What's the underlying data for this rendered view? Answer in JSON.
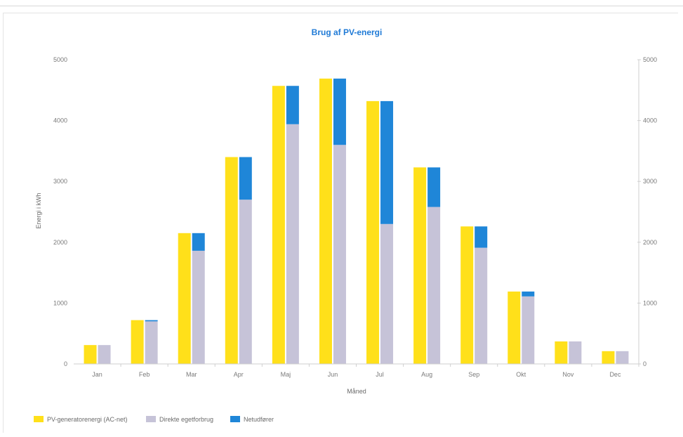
{
  "chart_data": {
    "type": "bar",
    "title": "Brug af PV-energi",
    "xlabel": "Måned",
    "ylabel": "Energi i kWh",
    "ylim": [
      0,
      5000
    ],
    "yticks": [
      0,
      1000,
      2000,
      3000,
      4000,
      5000
    ],
    "secondary_yaxis": true,
    "grid": false,
    "legend_position": "bottom-left",
    "categories": [
      "Jan",
      "Feb",
      "Mar",
      "Apr",
      "Maj",
      "Jun",
      "Jul",
      "Aug",
      "Sep",
      "Okt",
      "Nov",
      "Dec"
    ],
    "series": [
      {
        "name": "PV-generatorenergi (AC-net)",
        "color": "#ffe01a",
        "stack": "a",
        "values": [
          310,
          720,
          2150,
          3400,
          4570,
          4690,
          4320,
          3230,
          2260,
          1190,
          370,
          210
        ]
      },
      {
        "name": "Direkte egetforbrug",
        "color": "#c6c3d8",
        "stack": "b",
        "values": [
          310,
          700,
          1860,
          2700,
          3940,
          3600,
          2300,
          2580,
          1910,
          1110,
          370,
          210
        ]
      },
      {
        "name": "Netudfører",
        "color": "#1f86d8",
        "stack": "b",
        "values": [
          0,
          20,
          290,
          700,
          630,
          1090,
          2020,
          650,
          350,
          80,
          0,
          0
        ]
      }
    ]
  }
}
